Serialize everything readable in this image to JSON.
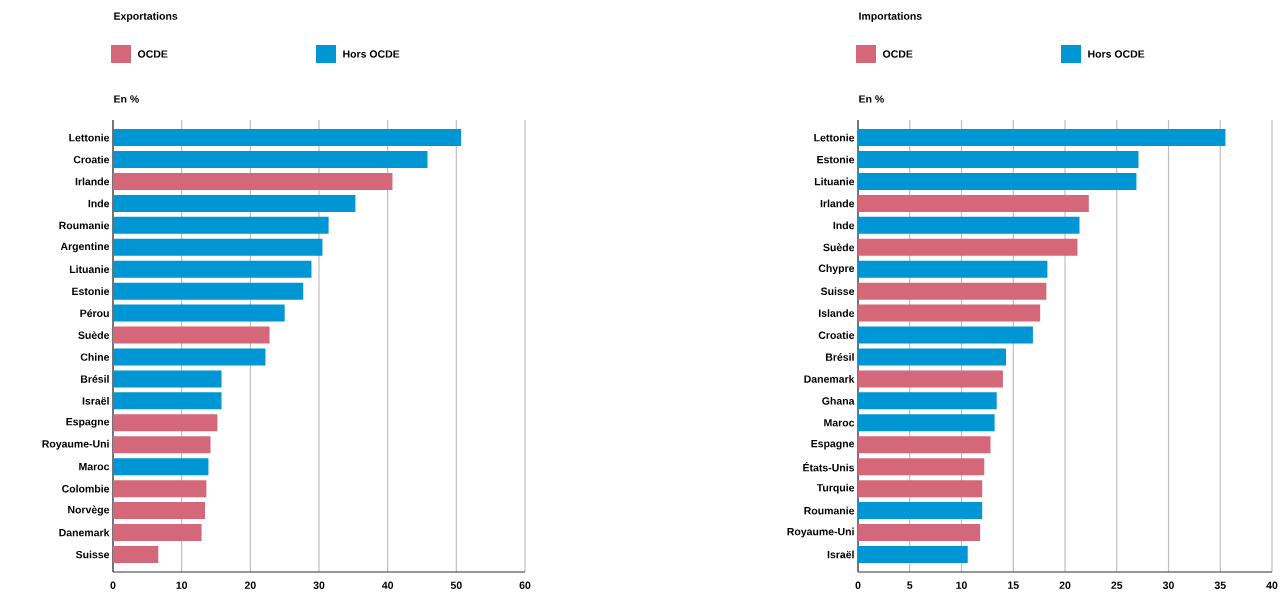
{
  "chart_data": [
    {
      "type": "bar",
      "orientation": "horizontal",
      "title": "Exportations",
      "xlabel": "En %",
      "categories": [
        "Lettonie",
        "Croatie",
        "Irlande",
        "Inde",
        "Roumanie",
        "Argentine",
        "Lituanie",
        "Estonie",
        "Pérou",
        "Suède",
        "Chine",
        "Brésil",
        "Israël",
        "Espagne",
        "Royaume-Uni",
        "Maroc",
        "Colombie",
        "Norvège",
        "Danemark",
        "Suisse"
      ],
      "series": [
        {
          "name": "OCDE",
          "color": "#d4687a",
          "values": [
            null,
            null,
            40.7,
            null,
            null,
            null,
            null,
            null,
            null,
            22.8,
            null,
            null,
            null,
            15.2,
            14.2,
            null,
            13.6,
            13.4,
            12.9,
            6.6
          ]
        },
        {
          "name": "Hors OCDE",
          "color": "#0095d3",
          "values": [
            50.7,
            45.8,
            null,
            35.3,
            31.4,
            30.5,
            28.9,
            27.7,
            25.0,
            null,
            22.2,
            15.8,
            15.8,
            null,
            null,
            13.9,
            null,
            null,
            null,
            null
          ]
        }
      ],
      "xlim": [
        0,
        60
      ],
      "xticks": [
        0,
        10,
        20,
        30,
        40,
        50,
        60
      ],
      "grid": "x",
      "legend": "top left"
    },
    {
      "type": "bar",
      "orientation": "horizontal",
      "title": "Importations",
      "xlabel": "En %",
      "categories": [
        "Lettonie",
        "Estonie",
        "Lituanie",
        "Irlande",
        "Inde",
        "Suède",
        "Chypre",
        "Suisse",
        "Islande",
        "Croatie",
        "Brésil",
        "Danemark",
        "Ghana",
        "Maroc",
        "Espagne",
        "États-Unis",
        "Turquie",
        "Roumanie",
        "Royaume-Uni",
        "Israël"
      ],
      "series": [
        {
          "name": "OCDE",
          "color": "#d4687a",
          "values": [
            null,
            null,
            null,
            22.3,
            null,
            21.2,
            null,
            18.2,
            17.6,
            null,
            null,
            14.0,
            null,
            null,
            12.8,
            12.2,
            12.0,
            null,
            11.8,
            null
          ]
        },
        {
          "name": "Hors OCDE",
          "color": "#0095d3",
          "values": [
            35.5,
            27.1,
            26.9,
            null,
            21.4,
            null,
            18.3,
            null,
            null,
            16.9,
            14.3,
            null,
            13.4,
            13.2,
            null,
            null,
            null,
            12.0,
            null,
            10.6
          ]
        }
      ],
      "xlim": [
        0,
        40
      ],
      "xticks": [
        0,
        5,
        10,
        15,
        20,
        25,
        30,
        35,
        40
      ],
      "grid": "x",
      "legend": "top left"
    }
  ]
}
